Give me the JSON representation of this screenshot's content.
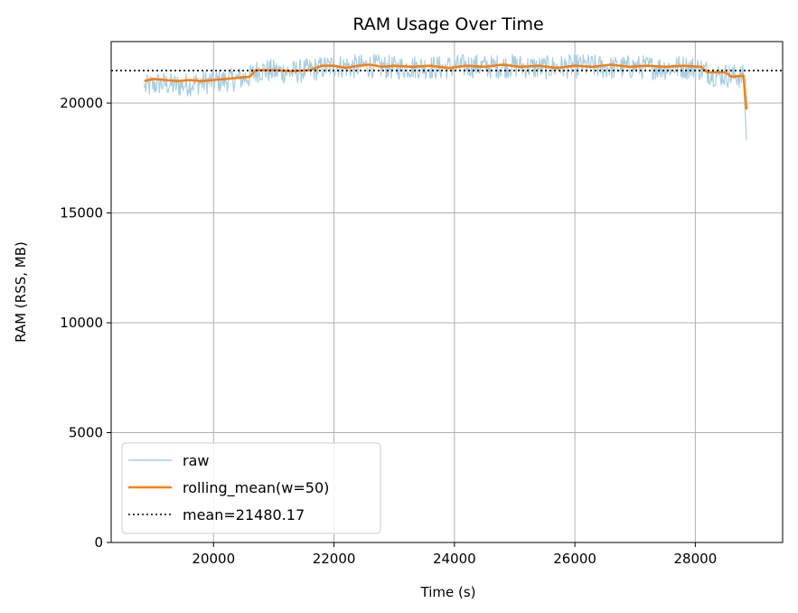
{
  "chart_data": {
    "type": "line",
    "title": "RAM Usage Over Time",
    "xlabel": "Time (s)",
    "ylabel": "RAM (RSS, MB)",
    "xlim": [
      18300,
      29450
    ],
    "ylim": [
      0,
      22800
    ],
    "x_ticks": [
      20000,
      22000,
      24000,
      26000,
      28000
    ],
    "x_tick_labels": [
      "20000",
      "22000",
      "24000",
      "26000",
      "28000"
    ],
    "y_ticks": [
      0,
      5000,
      10000,
      15000,
      20000
    ],
    "y_tick_labels": [
      "0",
      "5000",
      "10000",
      "15000",
      "20000"
    ],
    "grid": true,
    "legend_position": "lower-left",
    "series": [
      {
        "name": "raw",
        "color": "#a6cee3",
        "points": [
          [
            18850,
            20700
          ],
          [
            19100,
            20900
          ],
          [
            19400,
            20800
          ],
          [
            19700,
            20900
          ],
          [
            20000,
            21000
          ],
          [
            20300,
            21050
          ],
          [
            20600,
            21200
          ],
          [
            20750,
            21500
          ],
          [
            21000,
            21450
          ],
          [
            21300,
            21400
          ],
          [
            21600,
            21500
          ],
          [
            22000,
            21700
          ],
          [
            22300,
            21650
          ],
          [
            22600,
            21700
          ],
          [
            23000,
            21600
          ],
          [
            23400,
            21650
          ],
          [
            23800,
            21600
          ],
          [
            24200,
            21700
          ],
          [
            24600,
            21650
          ],
          [
            25000,
            21700
          ],
          [
            25400,
            21600
          ],
          [
            25800,
            21650
          ],
          [
            26200,
            21700
          ],
          [
            26600,
            21600
          ],
          [
            27000,
            21650
          ],
          [
            27400,
            21600
          ],
          [
            27800,
            21650
          ],
          [
            28100,
            21550
          ],
          [
            28300,
            21300
          ],
          [
            28600,
            21250
          ],
          [
            28800,
            21200
          ],
          [
            28850,
            18300
          ]
        ]
      },
      {
        "name": "rolling_mean(w=50)",
        "color": "#ff7f0e",
        "points": [
          [
            18850,
            21000
          ],
          [
            19000,
            21100
          ],
          [
            19200,
            21050
          ],
          [
            19400,
            21000
          ],
          [
            19600,
            21050
          ],
          [
            19800,
            21000
          ],
          [
            20000,
            21050
          ],
          [
            20200,
            21100
          ],
          [
            20400,
            21150
          ],
          [
            20600,
            21200
          ],
          [
            20700,
            21500
          ],
          [
            21000,
            21500
          ],
          [
            21300,
            21450
          ],
          [
            21600,
            21500
          ],
          [
            21800,
            21700
          ],
          [
            22000,
            21700
          ],
          [
            22200,
            21600
          ],
          [
            22400,
            21700
          ],
          [
            22600,
            21750
          ],
          [
            22800,
            21650
          ],
          [
            23000,
            21700
          ],
          [
            23300,
            21650
          ],
          [
            23600,
            21700
          ],
          [
            23900,
            21600
          ],
          [
            24200,
            21700
          ],
          [
            24500,
            21650
          ],
          [
            24800,
            21750
          ],
          [
            25100,
            21650
          ],
          [
            25400,
            21700
          ],
          [
            25700,
            21600
          ],
          [
            26000,
            21700
          ],
          [
            26300,
            21650
          ],
          [
            26600,
            21750
          ],
          [
            26900,
            21650
          ],
          [
            27200,
            21700
          ],
          [
            27500,
            21650
          ],
          [
            27800,
            21700
          ],
          [
            28100,
            21650
          ],
          [
            28200,
            21400
          ],
          [
            28500,
            21400
          ],
          [
            28600,
            21200
          ],
          [
            28800,
            21250
          ],
          [
            28850,
            19700
          ]
        ]
      }
    ],
    "reference_lines": [
      {
        "name": "mean=21480.17",
        "value": 21480.17,
        "color": "#000000",
        "style": "dotted"
      }
    ]
  }
}
